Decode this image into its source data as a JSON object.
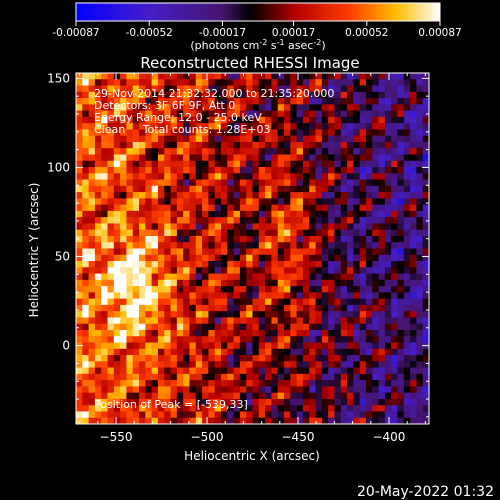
{
  "chart_data": {
    "type": "heatmap",
    "title": "Reconstructed RHESSI Image",
    "xlabel": "Heliocentric X (arcsec)",
    "ylabel": "Heliocentric Y (arcsec)",
    "xlim": [
      -572,
      -378
    ],
    "ylim": [
      -44,
      153
    ],
    "x_ticks": [
      -550,
      -500,
      -450,
      -400
    ],
    "y_ticks": [
      0,
      50,
      100,
      150
    ],
    "colorbar": {
      "min": -0.00087,
      "max": 0.00087,
      "ticks": [
        "-0.00087",
        "-0.00052",
        "-0.00017",
        "0.00017",
        "0.00052",
        "0.00087"
      ],
      "unit_parts": [
        "(photons cm",
        "-2",
        " s",
        "-1",
        " asec",
        "-2",
        ")"
      ]
    },
    "annotations": [
      "29-Nov-2014 21:32:32.000 to 21:35:20.000",
      "Detectors: 3F 6F 9F, Att 0",
      "Energy Range: 12.0 - 25.0 keV",
      "Clean     Total counts: 1.28E+03"
    ],
    "peak_text": "Position of Peak = [-539,33]",
    "peak": [
      -539,
      33
    ],
    "grid_nx": 56,
    "grid_ny": 56
  },
  "footer": {
    "timestamp": "20-May-2022 01:32"
  }
}
